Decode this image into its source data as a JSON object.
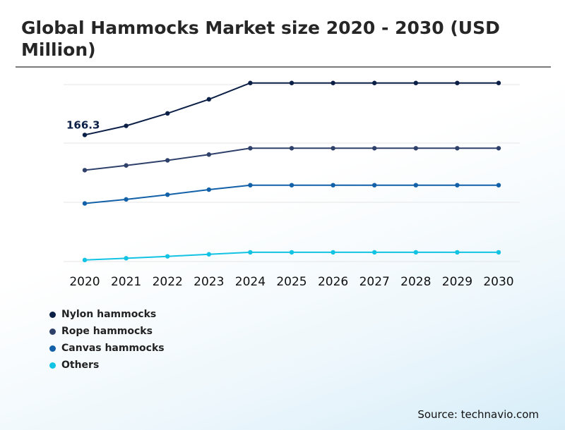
{
  "title": "Global Hammocks Market size 2020 - 2030 (USD Million)",
  "source": "Source: technavio.com",
  "chart_data": {
    "type": "line",
    "title": "Global Hammocks Market size 2020 - 2030 (USD Million)",
    "x": [
      "2020",
      "2021",
      "2022",
      "2023",
      "2024",
      "2025",
      "2026",
      "2027",
      "2028",
      "2029",
      "2030"
    ],
    "xlabel": "",
    "ylabel": "",
    "ylim": [
      0,
      280
    ],
    "grid": true,
    "legend_position": "bottom-left",
    "annotations": [
      {
        "series": "Nylon hammocks",
        "x": "2020",
        "label": "166.3"
      }
    ],
    "series": [
      {
        "name": "Nylon hammocks",
        "color": "#0b1f47",
        "values": [
          166.3,
          178.2,
          194.6,
          213.1,
          234.5,
          234.5,
          234.5,
          234.5,
          234.5,
          234.5,
          234.5
        ]
      },
      {
        "name": "Rope hammocks",
        "color": "#2f416b",
        "values": [
          120.0,
          126.2,
          132.9,
          140.5,
          148.8,
          148.8,
          148.8,
          148.8,
          148.8,
          148.8,
          148.8
        ]
      },
      {
        "name": "Canvas hammocks",
        "color": "#1260a8",
        "values": [
          76.3,
          81.6,
          87.8,
          94.4,
          100.3,
          100.3,
          100.3,
          100.3,
          100.3,
          100.3,
          100.3
        ]
      },
      {
        "name": "Others",
        "color": "#12c3e3",
        "values": [
          2.0,
          4.3,
          6.8,
          9.5,
          12.1,
          12.1,
          12.1,
          12.1,
          12.1,
          12.1,
          12.1
        ]
      }
    ]
  }
}
